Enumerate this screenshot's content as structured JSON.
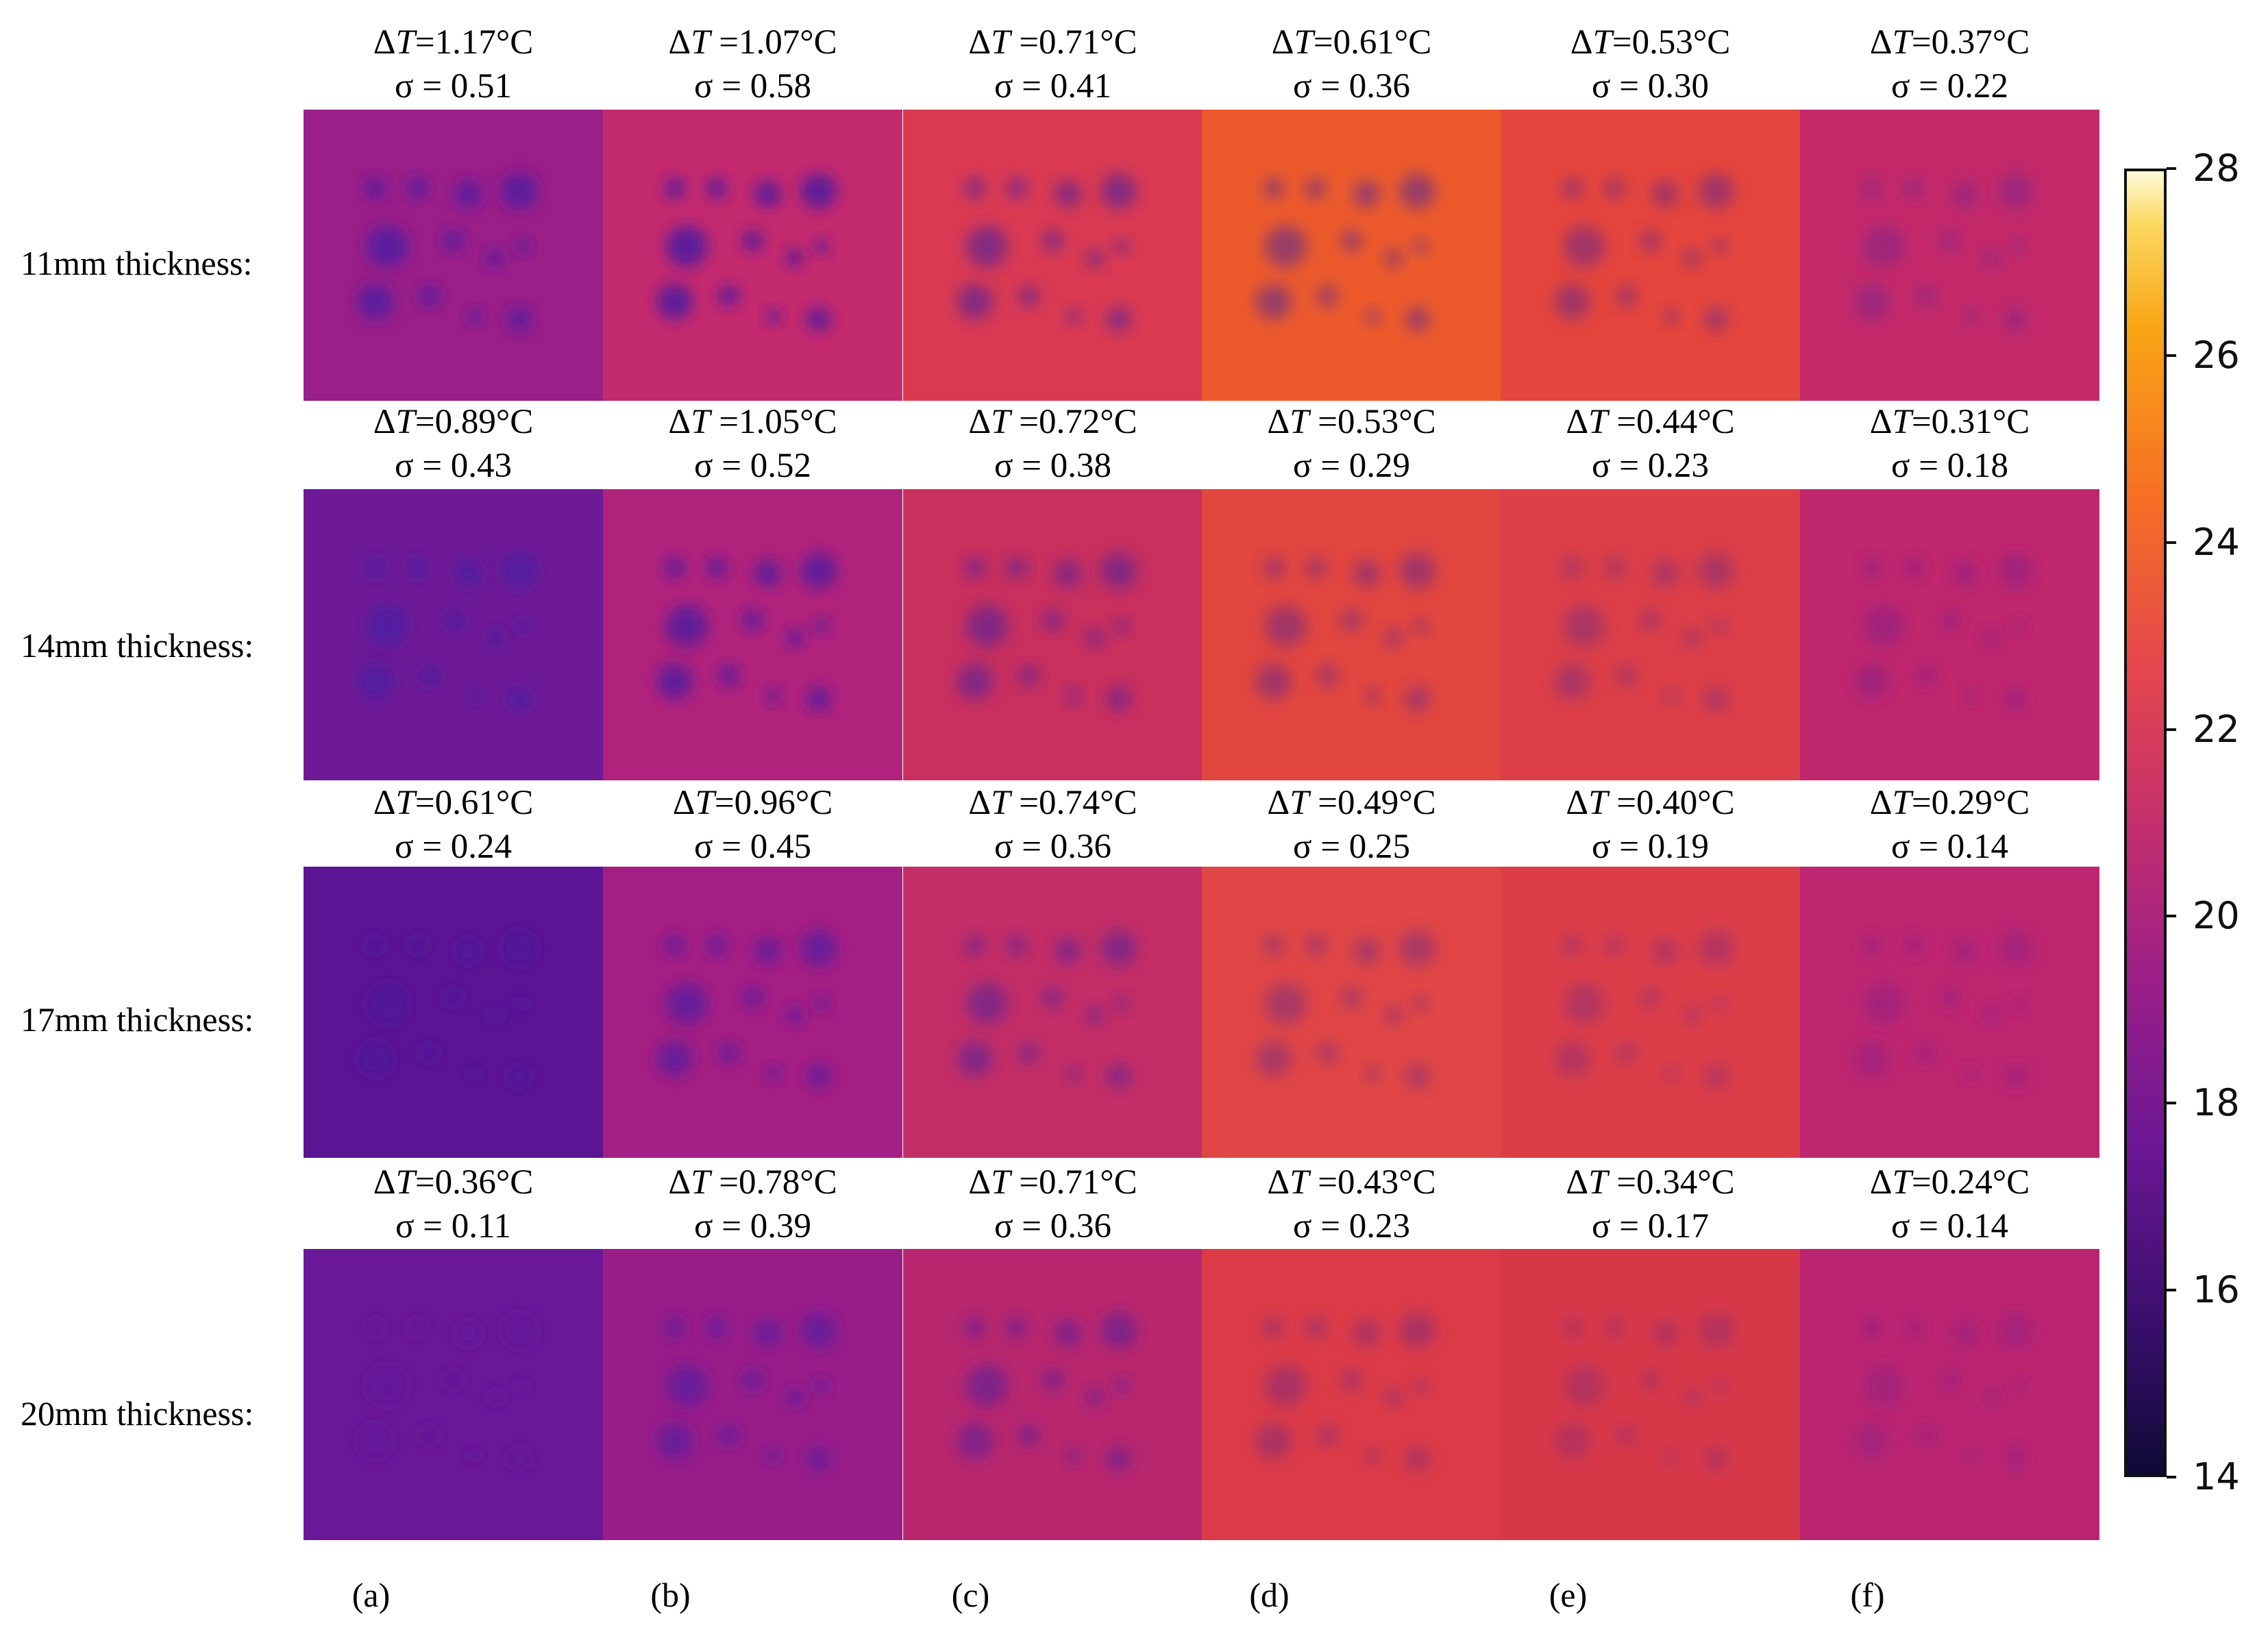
{
  "rows": [
    {
      "label": "11mm thickness:",
      "cells": [
        {
          "dt": "=1.17°C",
          "sigma": "σ = 0.51",
          "base": "#9a1f88"
        },
        {
          "dt": " =1.07°C",
          "sigma": "σ = 0.58",
          "base": "#c42a6e"
        },
        {
          "dt": " =0.71°C",
          "sigma": "σ = 0.41",
          "base": "#d93a52"
        },
        {
          "dt": "=0.61°C",
          "sigma": "σ = 0.36",
          "base": "#ec5a2c"
        },
        {
          "dt": "=0.53°C",
          "sigma": "σ = 0.30",
          "base": "#e4453c"
        },
        {
          "dt": "=0.37°C",
          "sigma": "σ = 0.22",
          "base": "#c42a6a"
        }
      ]
    },
    {
      "label": "14mm thickness:",
      "cells": [
        {
          "dt": "=0.89°C",
          "sigma": "σ = 0.43",
          "base": "#6e1a96"
        },
        {
          "dt": " =1.05°C",
          "sigma": "σ = 0.52",
          "base": "#b0237c"
        },
        {
          "dt": " =0.72°C",
          "sigma": "σ = 0.38",
          "base": "#c8305e"
        },
        {
          "dt": " =0.53°C",
          "sigma": "σ = 0.29",
          "base": "#e1463f"
        },
        {
          "dt": " =0.44°C",
          "sigma": "σ = 0.23",
          "base": "#dc3f47"
        },
        {
          "dt": "=0.31°C",
          "sigma": "σ = 0.18",
          "base": "#c0276d"
        }
      ]
    },
    {
      "label": "17mm thickness:",
      "cells": [
        {
          "dt": "=0.61°C",
          "sigma": "σ = 0.24",
          "base": "#5b1594"
        },
        {
          "dt": "=0.96°C",
          "sigma": "σ = 0.45",
          "base": "#a41f83"
        },
        {
          "dt": " =0.74°C",
          "sigma": "σ = 0.36",
          "base": "#c42e66"
        },
        {
          "dt": " =0.49°C",
          "sigma": "σ = 0.25",
          "base": "#e04645"
        },
        {
          "dt": " =0.40°C",
          "sigma": "σ = 0.19",
          "base": "#dc3e48"
        },
        {
          "dt": "=0.29°C",
          "sigma": "σ = 0.14",
          "base": "#be2670"
        }
      ]
    },
    {
      "label": "20mm thickness:",
      "cells": [
        {
          "dt": "=0.36°C",
          "sigma": "σ = 0.11",
          "base": "#6a1898"
        },
        {
          "dt": " =0.78°C",
          "sigma": "σ = 0.39",
          "base": "#981d89"
        },
        {
          "dt": " =0.71°C",
          "sigma": "σ = 0.36",
          "base": "#b8276e"
        },
        {
          "dt": " =0.43°C",
          "sigma": "σ = 0.23",
          "base": "#db3b47"
        },
        {
          "dt": " =0.34°C",
          "sigma": "σ = 0.17",
          "base": "#d73848"
        },
        {
          "dt": "=0.24°C",
          "sigma": "σ = 0.14",
          "base": "#bb2570"
        }
      ]
    }
  ],
  "delta_symbol": "Δ",
  "T_symbol": "T",
  "column_labels": [
    "(a)",
    "(b)",
    "(c)",
    "(d)",
    "(e)",
    "(f)"
  ],
  "colorbar": {
    "min": 14,
    "max": 28,
    "ticks": [
      "28",
      "26",
      "24",
      "22",
      "20",
      "18",
      "16",
      "14"
    ],
    "colors": [
      "#0e0a36",
      "#3a0f6e",
      "#6b1794",
      "#9b1f88",
      "#c42f6c",
      "#e4474d",
      "#f66f24",
      "#f9a515",
      "#fcd860",
      "#fdfbd9"
    ]
  },
  "defect_color": "#3b1aa8"
}
